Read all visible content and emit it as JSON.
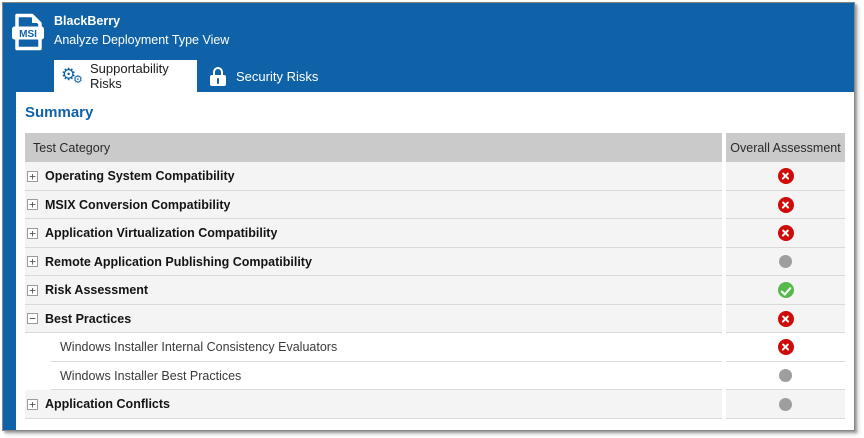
{
  "header": {
    "title": "BlackBerry",
    "subtitle": "Analyze Deployment Type View",
    "file_icon_label": "MSI"
  },
  "tabs": [
    {
      "label": "Supportability Risks",
      "icon": "gear-icon",
      "active": true
    },
    {
      "label": "Security Risks",
      "icon": "lock-icon",
      "active": false
    }
  ],
  "summary": {
    "heading": "Summary",
    "table": {
      "columns": [
        "Test Category",
        "Overall Assessment"
      ],
      "rows": [
        {
          "label": "Operating System Compatibility",
          "type": "category",
          "expander": "+",
          "status": "fail"
        },
        {
          "label": "MSIX Conversion Compatibility",
          "type": "category",
          "expander": "+",
          "status": "fail"
        },
        {
          "label": "Application Virtualization Compatibility",
          "type": "category",
          "expander": "+",
          "status": "fail"
        },
        {
          "label": "Remote Application Publishing Compatibility",
          "type": "category",
          "expander": "+",
          "status": "none"
        },
        {
          "label": "Risk Assessment",
          "type": "category",
          "expander": "+",
          "status": "pass"
        },
        {
          "label": "Best Practices",
          "type": "category",
          "expander": "−",
          "status": "fail"
        },
        {
          "label": "Windows Installer Internal Consistency Evaluators",
          "type": "subtest",
          "expander": null,
          "status": "fail"
        },
        {
          "label": "Windows Installer Best Practices",
          "type": "subtest",
          "expander": null,
          "status": "none"
        },
        {
          "label": "Application Conflicts",
          "type": "category",
          "expander": "+",
          "status": "none"
        }
      ]
    }
  },
  "colors": {
    "brand_blue": "#1062a8",
    "status_fail": "#d00909",
    "status_pass": "#56b949",
    "status_none": "#9e9e9e",
    "table_header_bg": "#cacaca",
    "category_row_bg": "#f4f4f4"
  }
}
